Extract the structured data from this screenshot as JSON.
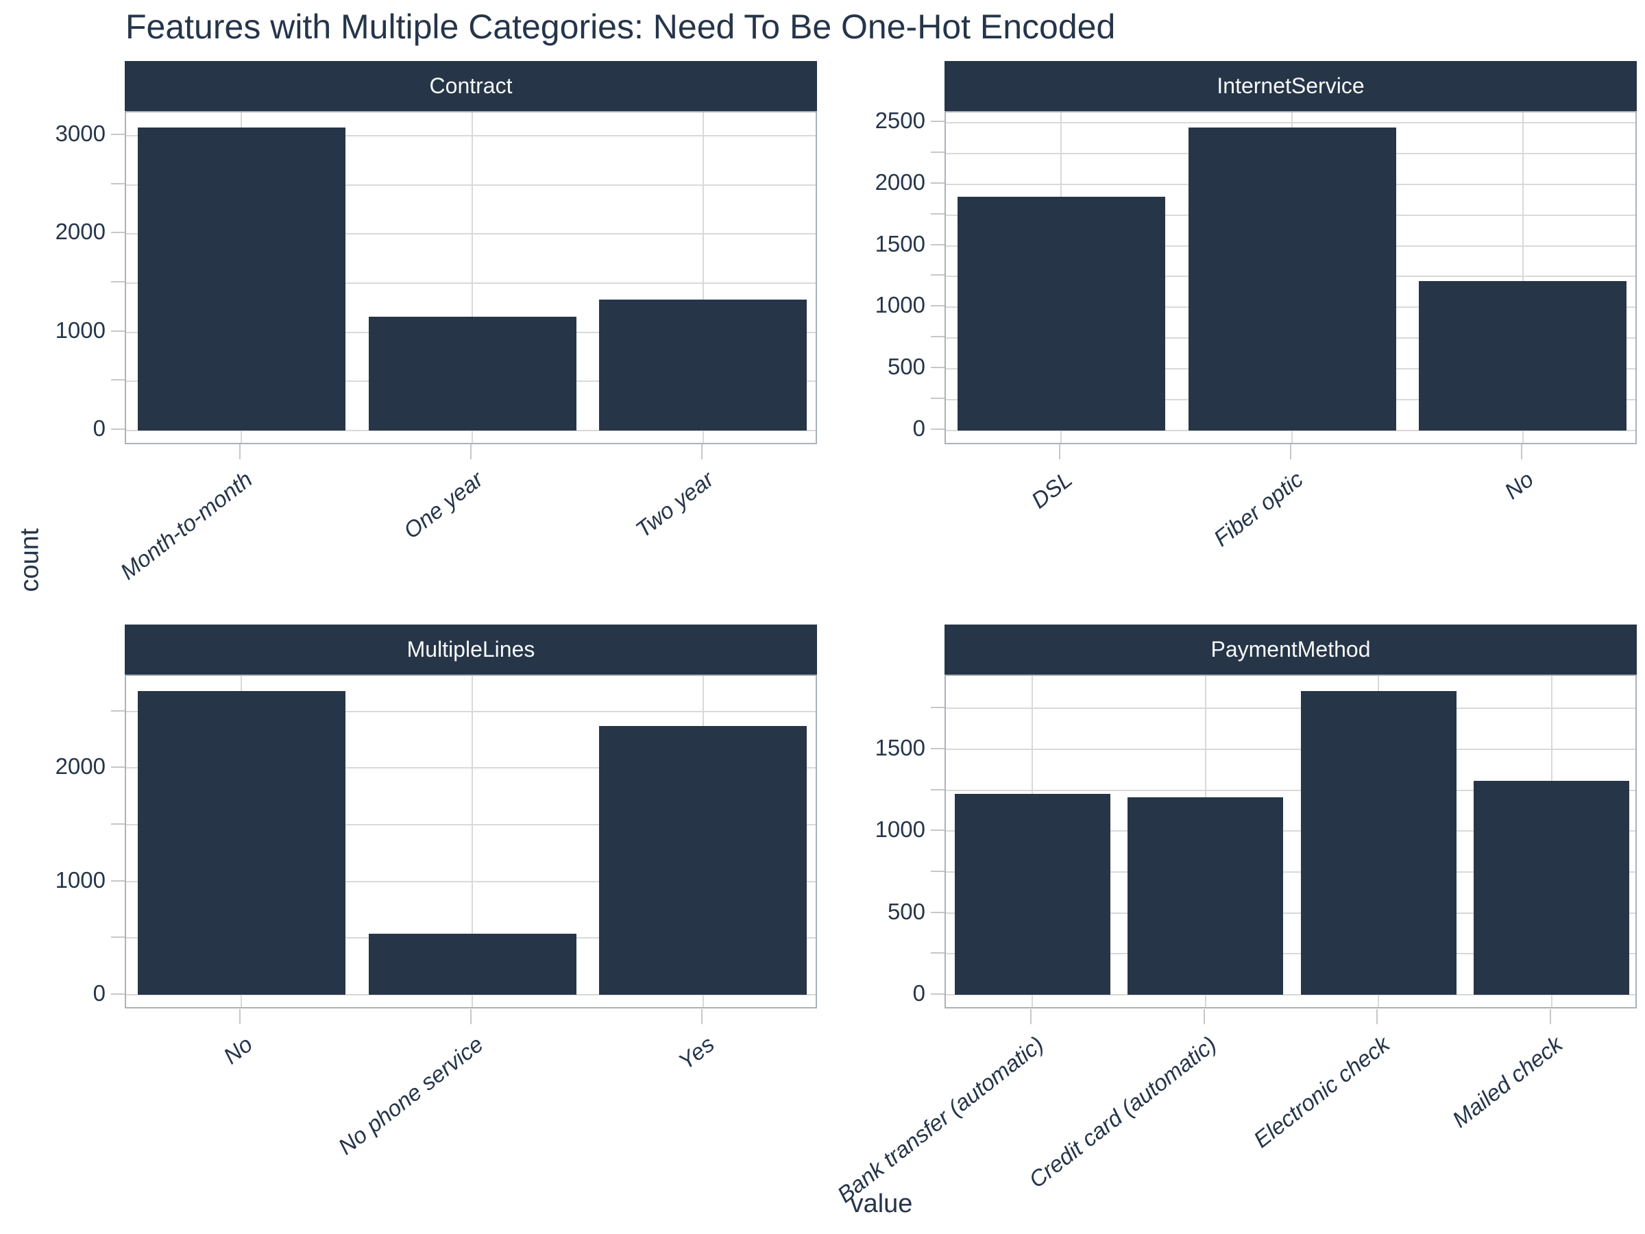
{
  "title": "Features with Multiple Categories: Need To Be One-Hot Encoded",
  "xlabel": "value",
  "ylabel": "count",
  "colors": {
    "bar": "#263547",
    "strip_background": "#263547",
    "strip_text": "#f7f9fa",
    "text": "#25354a",
    "gridline": "#d9d9d9",
    "tick_mark": "#c7c7c7",
    "panel_border": "#aab2ba",
    "background": "#ffffff"
  },
  "chart_data": [
    {
      "type": "bar",
      "facet": "Contract",
      "categories": [
        "Month-to-month",
        "One year",
        "Two year"
      ],
      "values": [
        3085,
        1160,
        1335
      ],
      "yticks": [
        0,
        1000,
        2000,
        3000
      ],
      "yticks_minor": [
        500,
        1500,
        2500
      ],
      "grid": "on",
      "legend": "none",
      "y_expand_mult": 0.05
    },
    {
      "type": "bar",
      "facet": "InternetService",
      "categories": [
        "DSL",
        "Fiber optic",
        "No"
      ],
      "values": [
        1900,
        2460,
        1215
      ],
      "yticks": [
        0,
        500,
        1000,
        1500,
        2000,
        2500
      ],
      "yticks_minor": [
        250,
        750,
        1250,
        1750,
        2250
      ],
      "grid": "on",
      "legend": "none",
      "y_expand_mult": 0.05
    },
    {
      "type": "bar",
      "facet": "MultipleLines",
      "categories": [
        "No",
        "No phone service",
        "Yes"
      ],
      "values": [
        2680,
        540,
        2370
      ],
      "yticks": [
        0,
        1000,
        2000
      ],
      "yticks_minor": [
        500,
        1500,
        2500
      ],
      "grid": "on",
      "legend": "none",
      "y_expand_mult": 0.05
    },
    {
      "type": "bar",
      "facet": "PaymentMethod",
      "categories": [
        "Bank transfer (automatic)",
        "Credit card (automatic)",
        "Electronic check",
        "Mailed check"
      ],
      "values": [
        1225,
        1205,
        1855,
        1305
      ],
      "yticks": [
        0,
        500,
        1000,
        1500
      ],
      "yticks_minor": [
        250,
        750,
        1250,
        1750
      ],
      "grid": "on",
      "legend": "none",
      "y_expand_mult": 0.05
    }
  ]
}
